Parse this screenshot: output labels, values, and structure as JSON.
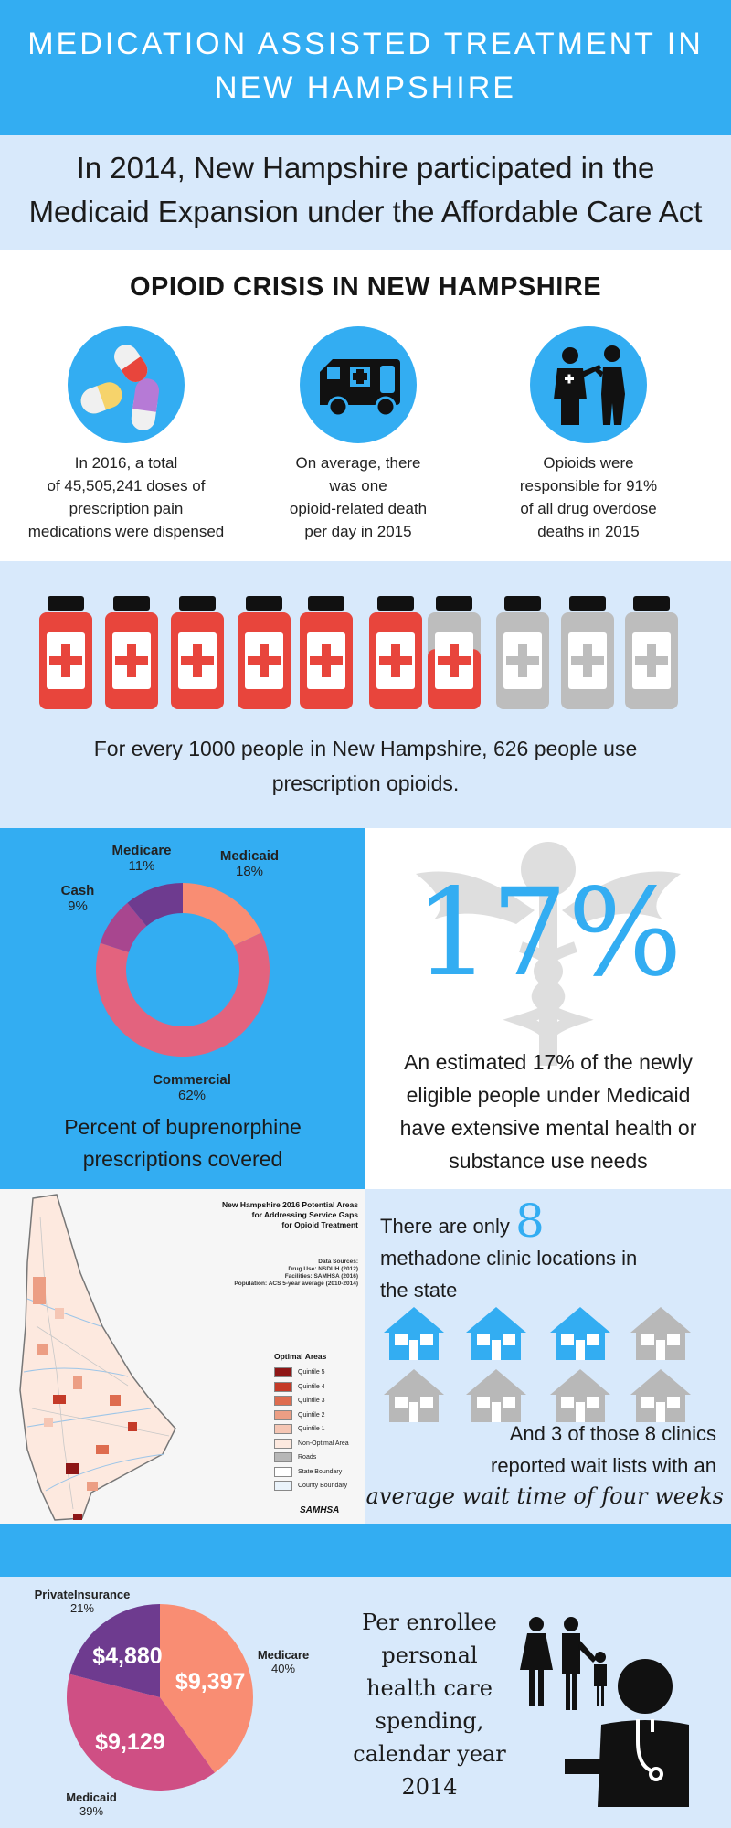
{
  "header": {
    "title_line1": "MEDICATION ASSISTED TREATMENT IN",
    "title_line2": "NEW HAMPSHIRE"
  },
  "intro": {
    "line1": "In 2014, New Hampshire participated in the",
    "line2": "Medicaid Expansion under the Affordable Care Act"
  },
  "crisis": {
    "title": "OPIOID CRISIS IN NEW HAMPSHIRE",
    "stats": [
      {
        "icon": "pills-icon",
        "lines": [
          "In 2016, a total",
          "of 45,505,241 doses of",
          "prescription pain",
          "medications were dispensed"
        ]
      },
      {
        "icon": "ambulance-icon",
        "lines": [
          "On average, there",
          "was one",
          "opioid-related death",
          "per day in 2015"
        ]
      },
      {
        "icon": "doctor-patient-icon",
        "lines": [
          "Opioids were",
          "responsible for 91%",
          "of all drug overdose",
          "deaths in 2015"
        ]
      }
    ]
  },
  "bottles": {
    "icon": "pill-bottle-icon",
    "fill_fraction": 0.626,
    "colors": {
      "filled": "#e8453c",
      "empty": "#bdbdbd",
      "cap": "#111111"
    },
    "text_line1": "For every 1000 people in New Hampshire, 626 people use",
    "text_line2": "prescription opioids."
  },
  "buprenorphine": {
    "caption_line1": "Percent of buprenorphine",
    "caption_line2": "prescriptions covered",
    "labels": [
      {
        "name": "Medicare",
        "pct": "11%"
      },
      {
        "name": "Medicaid",
        "pct": "18%"
      },
      {
        "name": "Cash",
        "pct": "9%"
      },
      {
        "name": "Commercial",
        "pct": "62%"
      }
    ]
  },
  "mental_health": {
    "big_number": "17%",
    "icon": "caduceus-icon",
    "lines": [
      "An estimated 17% of the newly",
      "eligible people under Medicaid",
      "have extensive mental health or",
      "substance use needs"
    ]
  },
  "map": {
    "title_lines": [
      "New Hampshire 2016 Potential Areas",
      "for Addressing Service Gaps",
      "for Opioid Treatment"
    ],
    "sources_lines": [
      "Data Sources:",
      "Drug Use: NSDUH (2012)",
      "Facilities: SAMHSA (2016)",
      "Population: ACS 5-year average (2010-2014)"
    ],
    "legend_title": "Optimal Areas",
    "legend": [
      {
        "label": "Quintile 5",
        "color": "#8e1616"
      },
      {
        "label": "Quintile 4",
        "color": "#c43a28"
      },
      {
        "label": "Quintile 3",
        "color": "#de6c4f"
      },
      {
        "label": "Quintile 2",
        "color": "#ec9e84"
      },
      {
        "label": "Quintile 1",
        "color": "#f5c6b4"
      },
      {
        "label": "Non-Optimal Area",
        "color": "#fde9df"
      },
      {
        "label": "Roads",
        "color": "#b7b7b7"
      },
      {
        "label": "State Boundary",
        "color": "#ffffff"
      },
      {
        "label": "County Boundary",
        "color": "#eaf3fb"
      }
    ],
    "logo": "SAMHSA"
  },
  "clinics": {
    "line1_pre": "There are only",
    "number": "8",
    "line2": "methadone clinic locations in",
    "line3": "the state",
    "total_houses": 8,
    "highlighted": 3,
    "house_colors": {
      "highlight": "#33adf2",
      "normal": "#b8b8b8"
    },
    "wait_line1": "And 3 of those 8 clinics",
    "wait_line2": "reported wait lists with an",
    "wait_line3": "average wait time of four weeks"
  },
  "spending": {
    "text_lines": [
      "Per enrollee",
      "personal",
      "health care",
      "spending,",
      "calendar year",
      "2014"
    ],
    "icons": [
      "family-icon",
      "doctor-icon"
    ]
  },
  "chart_data": [
    {
      "type": "pie",
      "donut": true,
      "categories": [
        "Medicaid",
        "Commercial",
        "Cash",
        "Medicare"
      ],
      "values": [
        18,
        62,
        9,
        11
      ],
      "colors": [
        "#f98d73",
        "#e3637e",
        "#a8468f",
        "#6e3b8f"
      ],
      "caption": "Percent of buprenorphine prescriptions covered"
    },
    {
      "type": "pie",
      "donut": false,
      "categories": [
        "Medicare",
        "Medicaid",
        "PrivateInsurance"
      ],
      "values": [
        40,
        39,
        21
      ],
      "slice_labels": [
        "$9,397",
        "$9,129",
        "$4,880"
      ],
      "pct_labels": [
        "40%",
        "39%",
        "21%"
      ],
      "colors": [
        "#f98d73",
        "#cf4f84",
        "#6e3b8f"
      ],
      "caption": "Per enrollee personal health care spending, calendar year 2014"
    }
  ]
}
